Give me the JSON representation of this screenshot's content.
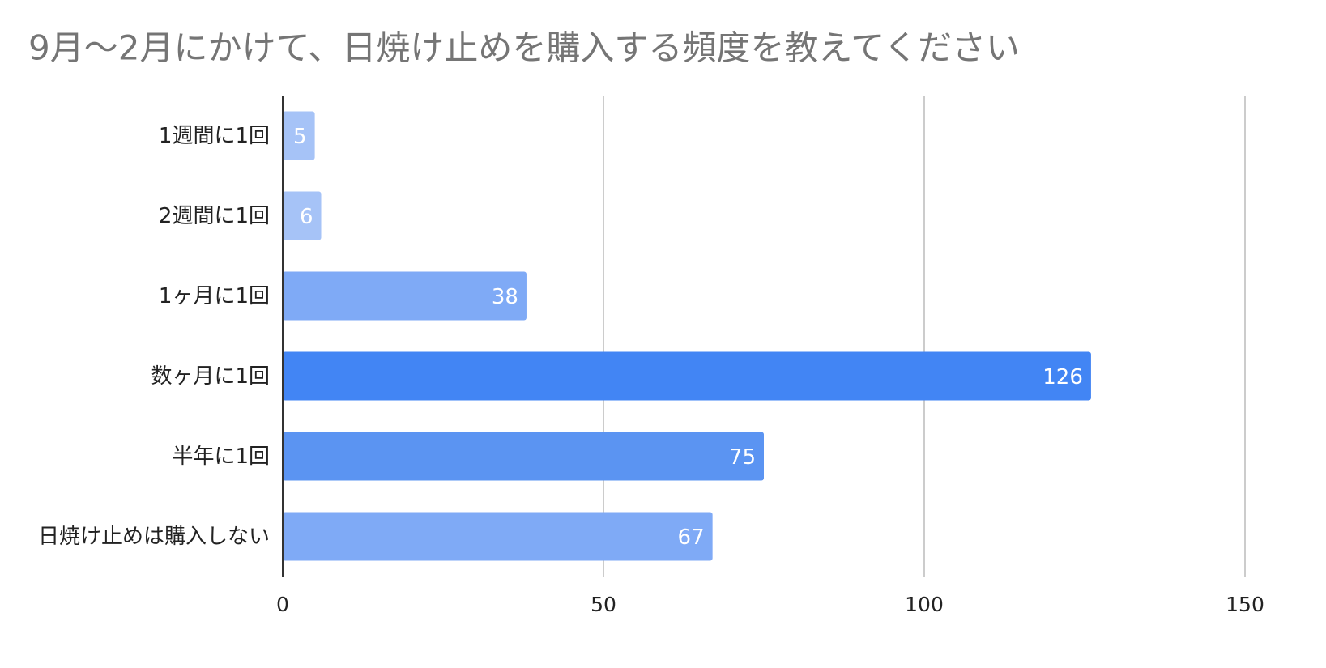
{
  "chart_data": {
    "type": "bar",
    "orientation": "horizontal",
    "title": "9月～2月にかけて、日焼け止めを購入する頻度を教えてください",
    "categories": [
      "1週間に1回",
      "2週間に1回",
      "1ヶ月に1回",
      "数ヶ月に1回",
      "半年に1回",
      "日焼け止めは購入しない"
    ],
    "values": [
      5,
      6,
      38,
      126,
      75,
      67
    ],
    "colors": [
      "#a6c3f7",
      "#a6c3f7",
      "#7faaf6",
      "#4285f4",
      "#5b94f2",
      "#7faaf6"
    ],
    "xlim": [
      0,
      150
    ],
    "xticks": [
      0,
      50,
      100,
      150
    ],
    "grid": true
  }
}
